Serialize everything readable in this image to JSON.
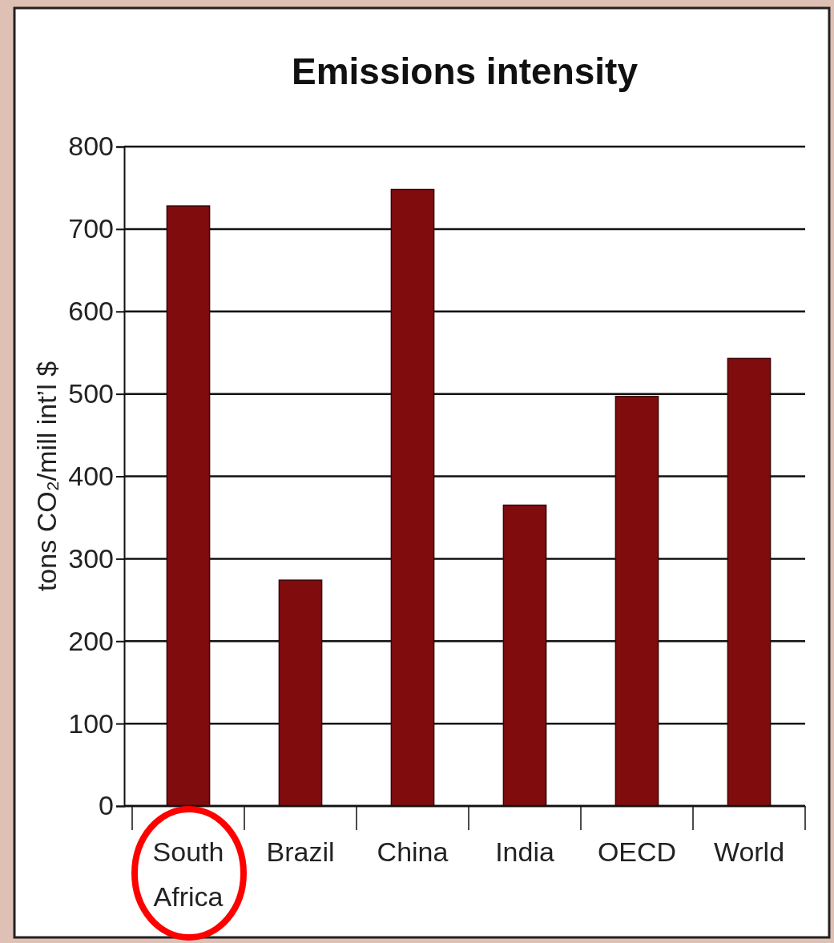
{
  "chart_data": {
    "type": "bar",
    "title": "Emissions intensity",
    "ylabel": "tons CO₂/mill int’l $",
    "categories": [
      "South Africa",
      "Brazil",
      "China",
      "India",
      "OECD",
      "World"
    ],
    "values": [
      728,
      274,
      748,
      365,
      497,
      543
    ],
    "color": "#800c0e",
    "ylim": [
      0,
      800
    ],
    "yticks": [
      0,
      100,
      200,
      300,
      400,
      500,
      600,
      700,
      800
    ],
    "grid": "y"
  }
}
